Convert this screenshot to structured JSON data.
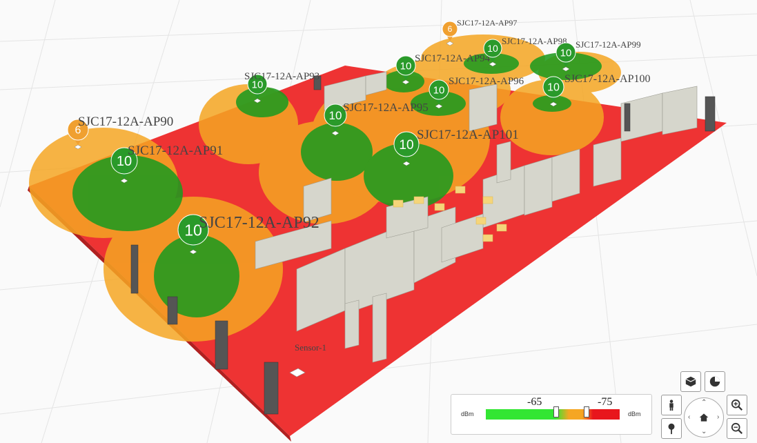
{
  "access_points": [
    {
      "name": "SJC17-12A-AP90",
      "count": "6",
      "color": "#f0a030"
    },
    {
      "name": "SJC17-12A-AP91",
      "count": "10",
      "color": "#2a9a2a"
    },
    {
      "name": "SJC17-12A-AP92",
      "count": "10",
      "color": "#2a9a2a"
    },
    {
      "name": "SJC17-12A-AP93",
      "count": "10",
      "color": "#2a9a2a"
    },
    {
      "name": "SJC17-12A-AP95",
      "count": "10",
      "color": "#2a9a2a"
    },
    {
      "name": "SJC17-12A-AP101",
      "count": "10",
      "color": "#2a9a2a"
    },
    {
      "name": "SJC17-12A-AP94",
      "count": "10",
      "color": "#2a9a2a"
    },
    {
      "name": "SJC17-12A-AP96",
      "count": "10",
      "color": "#2a9a2a"
    },
    {
      "name": "SJC17-12A-AP100",
      "count": "10",
      "color": "#2a9a2a"
    },
    {
      "name": "SJC17-12A-AP97",
      "count": "6",
      "color": "#f0a030"
    },
    {
      "name": "SJC17-12A-AP98",
      "count": "10",
      "color": "#2a9a2a"
    },
    {
      "name": "SJC17-12A-AP99",
      "count": "10",
      "color": "#2a9a2a"
    }
  ],
  "sensor": {
    "label": "Sensor-1"
  },
  "legend": {
    "unit_left": "dBm",
    "unit_right": "dBm",
    "threshold_high": "-65",
    "threshold_low": "-75",
    "colors": {
      "strong": "#33e633",
      "medium": "#f5a623",
      "weak": "#e8161c"
    }
  },
  "controls": {
    "icons": [
      "cube-icon",
      "pie-chart-icon",
      "person-icon",
      "location-pin-icon",
      "zoom-in-icon",
      "zoom-out-icon",
      "home-icon"
    ]
  },
  "floor_colors": {
    "weak": "#ee3333",
    "medium": "#f5a623",
    "strong": "#1f9a1f"
  }
}
